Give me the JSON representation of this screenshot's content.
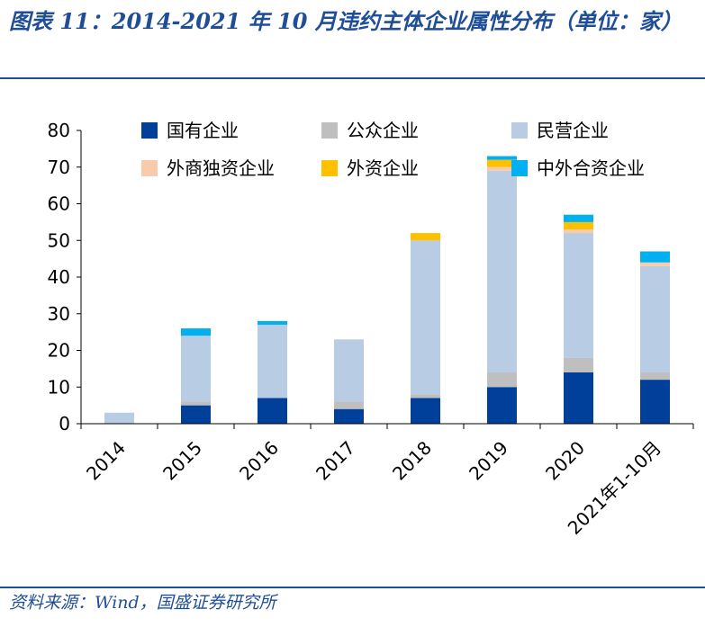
{
  "title": "图表 11：2014-2021 年 10 月违约主体企业属性分布（单位：家）",
  "source": "资料来源：Wind，国盛证券研究所",
  "chart_data": {
    "type": "bar",
    "stacked": true,
    "categories": [
      "2014",
      "2015",
      "2016",
      "2017",
      "2018",
      "2019",
      "2020",
      "2021年1-10月"
    ],
    "series": [
      {
        "name": "国有企业",
        "color": "#003f9a",
        "values": [
          0,
          5,
          7,
          4,
          7,
          10,
          14,
          12
        ]
      },
      {
        "name": "公众企业",
        "color": "#bfbfbf",
        "values": [
          0,
          1,
          0,
          2,
          1,
          4,
          4,
          2
        ]
      },
      {
        "name": "民营企业",
        "color": "#b8cce4",
        "values": [
          3,
          18,
          20,
          17,
          42,
          55,
          34,
          29
        ]
      },
      {
        "name": "外商独资企业",
        "color": "#f8cbad",
        "values": [
          0,
          0,
          0,
          0,
          0,
          1,
          1,
          1
        ]
      },
      {
        "name": "外资企业",
        "color": "#ffc000",
        "values": [
          0,
          0,
          0,
          0,
          2,
          2,
          2,
          0
        ]
      },
      {
        "name": "中外合资企业",
        "color": "#00b0f0",
        "values": [
          0,
          2,
          1,
          0,
          0,
          1,
          2,
          3
        ]
      }
    ],
    "ylim": [
      0,
      80
    ],
    "yticks": [
      0,
      10,
      20,
      30,
      40,
      50,
      60,
      70,
      80
    ],
    "legend_position": "top",
    "grid": false
  }
}
